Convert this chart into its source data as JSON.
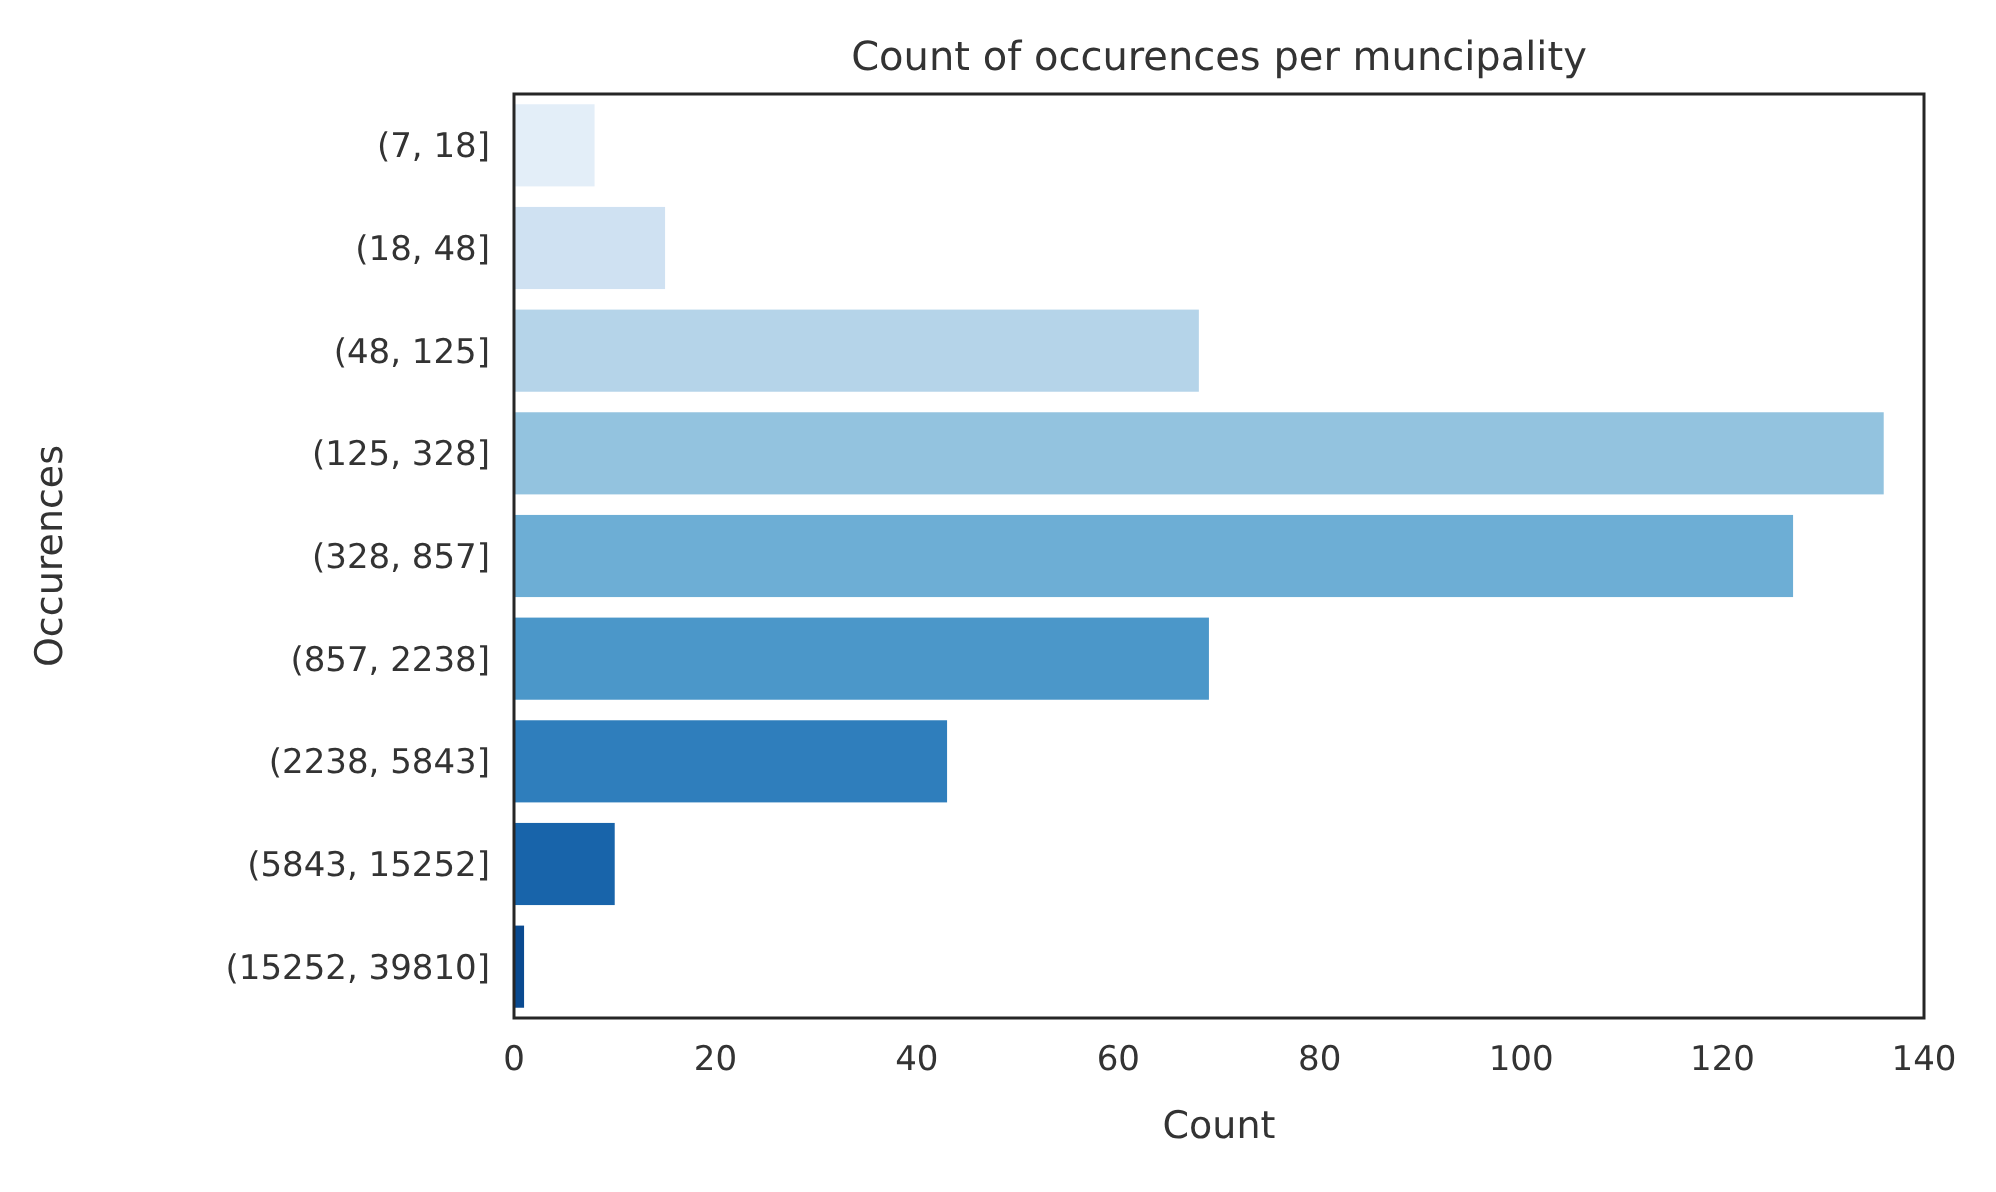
{
  "chart_data": {
    "type": "bar",
    "orientation": "horizontal",
    "title": "Count of occurences per muncipality",
    "xlabel": "Count",
    "ylabel": "Occurences",
    "categories": [
      "(7, 18]",
      "(18, 48]",
      "(48, 125]",
      "(125, 328]",
      "(328, 857]",
      "(857, 2238]",
      "(2238, 5843]",
      "(5843, 15252]",
      "(15252, 39810]"
    ],
    "values": [
      8,
      15,
      68,
      136,
      127,
      69,
      43,
      10,
      1
    ],
    "colors": [
      "#e3eef8",
      "#cfe1f2",
      "#b5d4e9",
      "#93c3df",
      "#6daed5",
      "#4b97c9",
      "#2f7ebc",
      "#1864aa",
      "#0a4a90"
    ],
    "xlim": [
      0,
      140
    ],
    "xticks": [
      0,
      20,
      40,
      60,
      80,
      100,
      120,
      140
    ],
    "grid": false
  }
}
